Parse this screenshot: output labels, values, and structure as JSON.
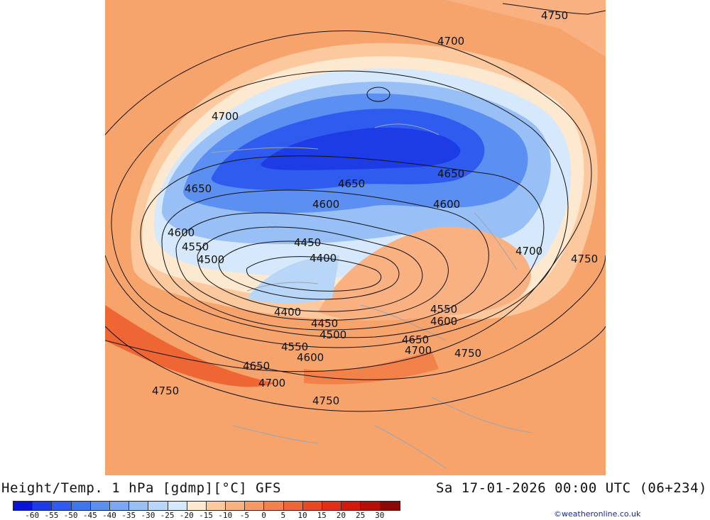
{
  "footer": {
    "title": "Height/Temp. 1 hPa [gdmp][°C] GFS",
    "datetime": "Sa 17-01-2026 00:00 UTC (06+234)",
    "credit": "©weatheronline.co.uk"
  },
  "colorbar": {
    "colors": [
      "#0a14d8",
      "#1e3ce6",
      "#2f5cee",
      "#3f76f0",
      "#5b90f2",
      "#7aa8f4",
      "#98c0f6",
      "#b8d6f8",
      "#d6e8fb",
      "#fde8d0",
      "#fcc99e",
      "#f9b182",
      "#f79a64",
      "#f3814a",
      "#ee6634",
      "#e84a1e",
      "#e22e12",
      "#d21a0c",
      "#b50f08",
      "#8c0804"
    ],
    "labels": [
      "-60",
      "-55",
      "-50",
      "-45",
      "-40",
      "-35",
      "-30",
      "-25",
      "-20",
      "-15",
      "-10",
      "-5",
      "0",
      "5",
      "10",
      "15",
      "20",
      "25",
      "30"
    ]
  },
  "map": {
    "contour_labels": [
      {
        "text": "4750"
      },
      {
        "text": "4700"
      },
      {
        "text": "4700"
      },
      {
        "text": "4650"
      },
      {
        "text": "4650"
      },
      {
        "text": "4650"
      },
      {
        "text": "4600"
      },
      {
        "text": "4600"
      },
      {
        "text": "4600"
      },
      {
        "text": "4550"
      },
      {
        "text": "4500"
      },
      {
        "text": "4450"
      },
      {
        "text": "4400"
      },
      {
        "text": "4400"
      },
      {
        "text": "4450"
      },
      {
        "text": "4500"
      },
      {
        "text": "4550"
      },
      {
        "text": "4600"
      },
      {
        "text": "4650"
      },
      {
        "text": "4700"
      },
      {
        "text": "4750"
      },
      {
        "text": "4700"
      },
      {
        "text": "4750"
      },
      {
        "text": "4550"
      },
      {
        "text": "4600"
      },
      {
        "text": "4650"
      },
      {
        "text": "4700"
      },
      {
        "text": "4750"
      },
      {
        "text": "4750"
      }
    ]
  }
}
